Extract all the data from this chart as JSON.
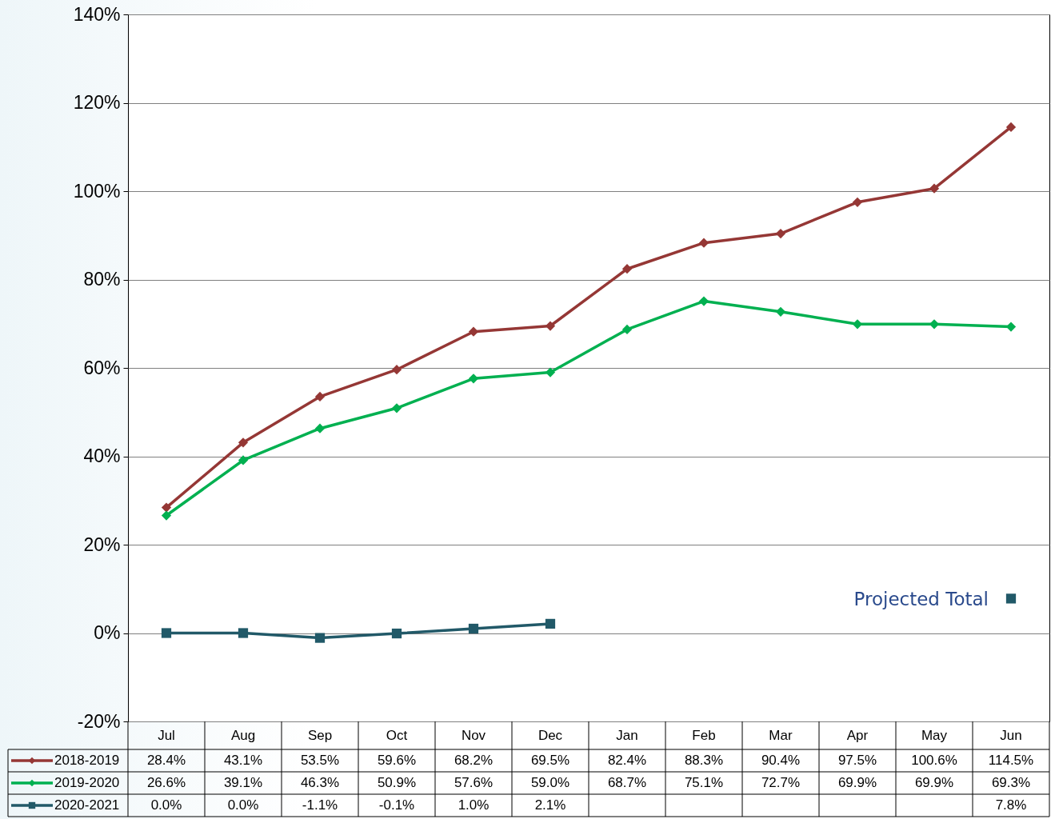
{
  "chart_data": {
    "type": "line",
    "categories": [
      "Jul",
      "Aug",
      "Sep",
      "Oct",
      "Nov",
      "Dec",
      "Jan",
      "Feb",
      "Mar",
      "Apr",
      "May",
      "Jun"
    ],
    "series": [
      {
        "name": "2018-2019",
        "color": "#953735",
        "marker": "diamond",
        "values": [
          28.4,
          43.1,
          53.5,
          59.6,
          68.2,
          69.5,
          82.4,
          88.3,
          90.4,
          97.5,
          100.6,
          114.5
        ],
        "value_labels": [
          "28.4%",
          "43.1%",
          "53.5%",
          "59.6%",
          "68.2%",
          "69.5%",
          "82.4%",
          "88.3%",
          "90.4%",
          "97.5%",
          "100.6%",
          "114.5%"
        ]
      },
      {
        "name": "2019-2020",
        "color": "#00b050",
        "marker": "diamond",
        "values": [
          26.6,
          39.1,
          46.3,
          50.9,
          57.6,
          59.0,
          68.7,
          75.1,
          72.7,
          69.9,
          69.9,
          69.3
        ],
        "value_labels": [
          "26.6%",
          "39.1%",
          "46.3%",
          "50.9%",
          "57.6%",
          "59.0%",
          "68.7%",
          "75.1%",
          "72.7%",
          "69.9%",
          "69.9%",
          "69.3%"
        ]
      },
      {
        "name": "2020-2021",
        "color": "#215968",
        "marker": "square",
        "values": [
          0.0,
          0.0,
          -1.1,
          -0.1,
          1.0,
          2.1,
          null,
          null,
          null,
          null,
          null,
          7.8
        ],
        "value_labels": [
          "0.0%",
          "0.0%",
          "-1.1%",
          "-0.1%",
          "1.0%",
          "2.1%",
          null,
          null,
          null,
          null,
          null,
          "7.8%"
        ]
      }
    ],
    "ylim": [
      -20,
      140
    ],
    "yticks": [
      {
        "value": -20,
        "label": "-20%"
      },
      {
        "value": 0,
        "label": "0%"
      },
      {
        "value": 20,
        "label": "20%"
      },
      {
        "value": 40,
        "label": "40%"
      },
      {
        "value": 60,
        "label": "60%"
      },
      {
        "value": 80,
        "label": "80%"
      },
      {
        "value": 100,
        "label": "100%"
      },
      {
        "value": 120,
        "label": "120%"
      },
      {
        "value": 140,
        "label": "140%"
      }
    ],
    "grid": "y",
    "legend": "bottom left",
    "annotations": [
      {
        "text": "Projected Total",
        "x": "Jun",
        "y": 7.8
      }
    ]
  }
}
